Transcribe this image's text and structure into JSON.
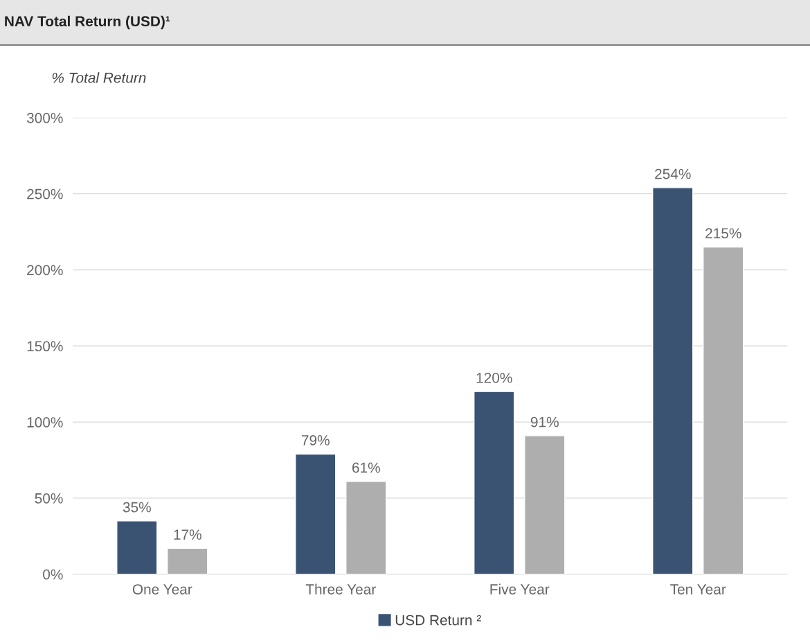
{
  "chart_data": {
    "type": "bar",
    "title": "NAV Total Return (USD)¹",
    "ylabel": "% Total Return",
    "categories": [
      "One Year",
      "Three Year",
      "Five Year",
      "Ten Year"
    ],
    "series": [
      {
        "name": "USD Return ²",
        "color": "#3a5373",
        "values": [
          35,
          79,
          120,
          254
        ],
        "value_labels": [
          "35%",
          "79%",
          "120%",
          "254%"
        ]
      },
      {
        "color": "#aeaeaf",
        "values": [
          17,
          61,
          91,
          215
        ],
        "value_labels": [
          "17%",
          "61%",
          "91%",
          "215%"
        ]
      }
    ],
    "ylim": [
      0,
      300
    ],
    "yticks": [
      {
        "value": 0,
        "label": "0%"
      },
      {
        "value": 50,
        "label": "50%"
      },
      {
        "value": 100,
        "label": "100%"
      },
      {
        "value": 150,
        "label": "150%"
      },
      {
        "value": 200,
        "label": "200%"
      },
      {
        "value": 250,
        "label": "250%"
      },
      {
        "value": 300,
        "label": "300%"
      }
    ],
    "grid": "y",
    "legend": "bottom"
  }
}
